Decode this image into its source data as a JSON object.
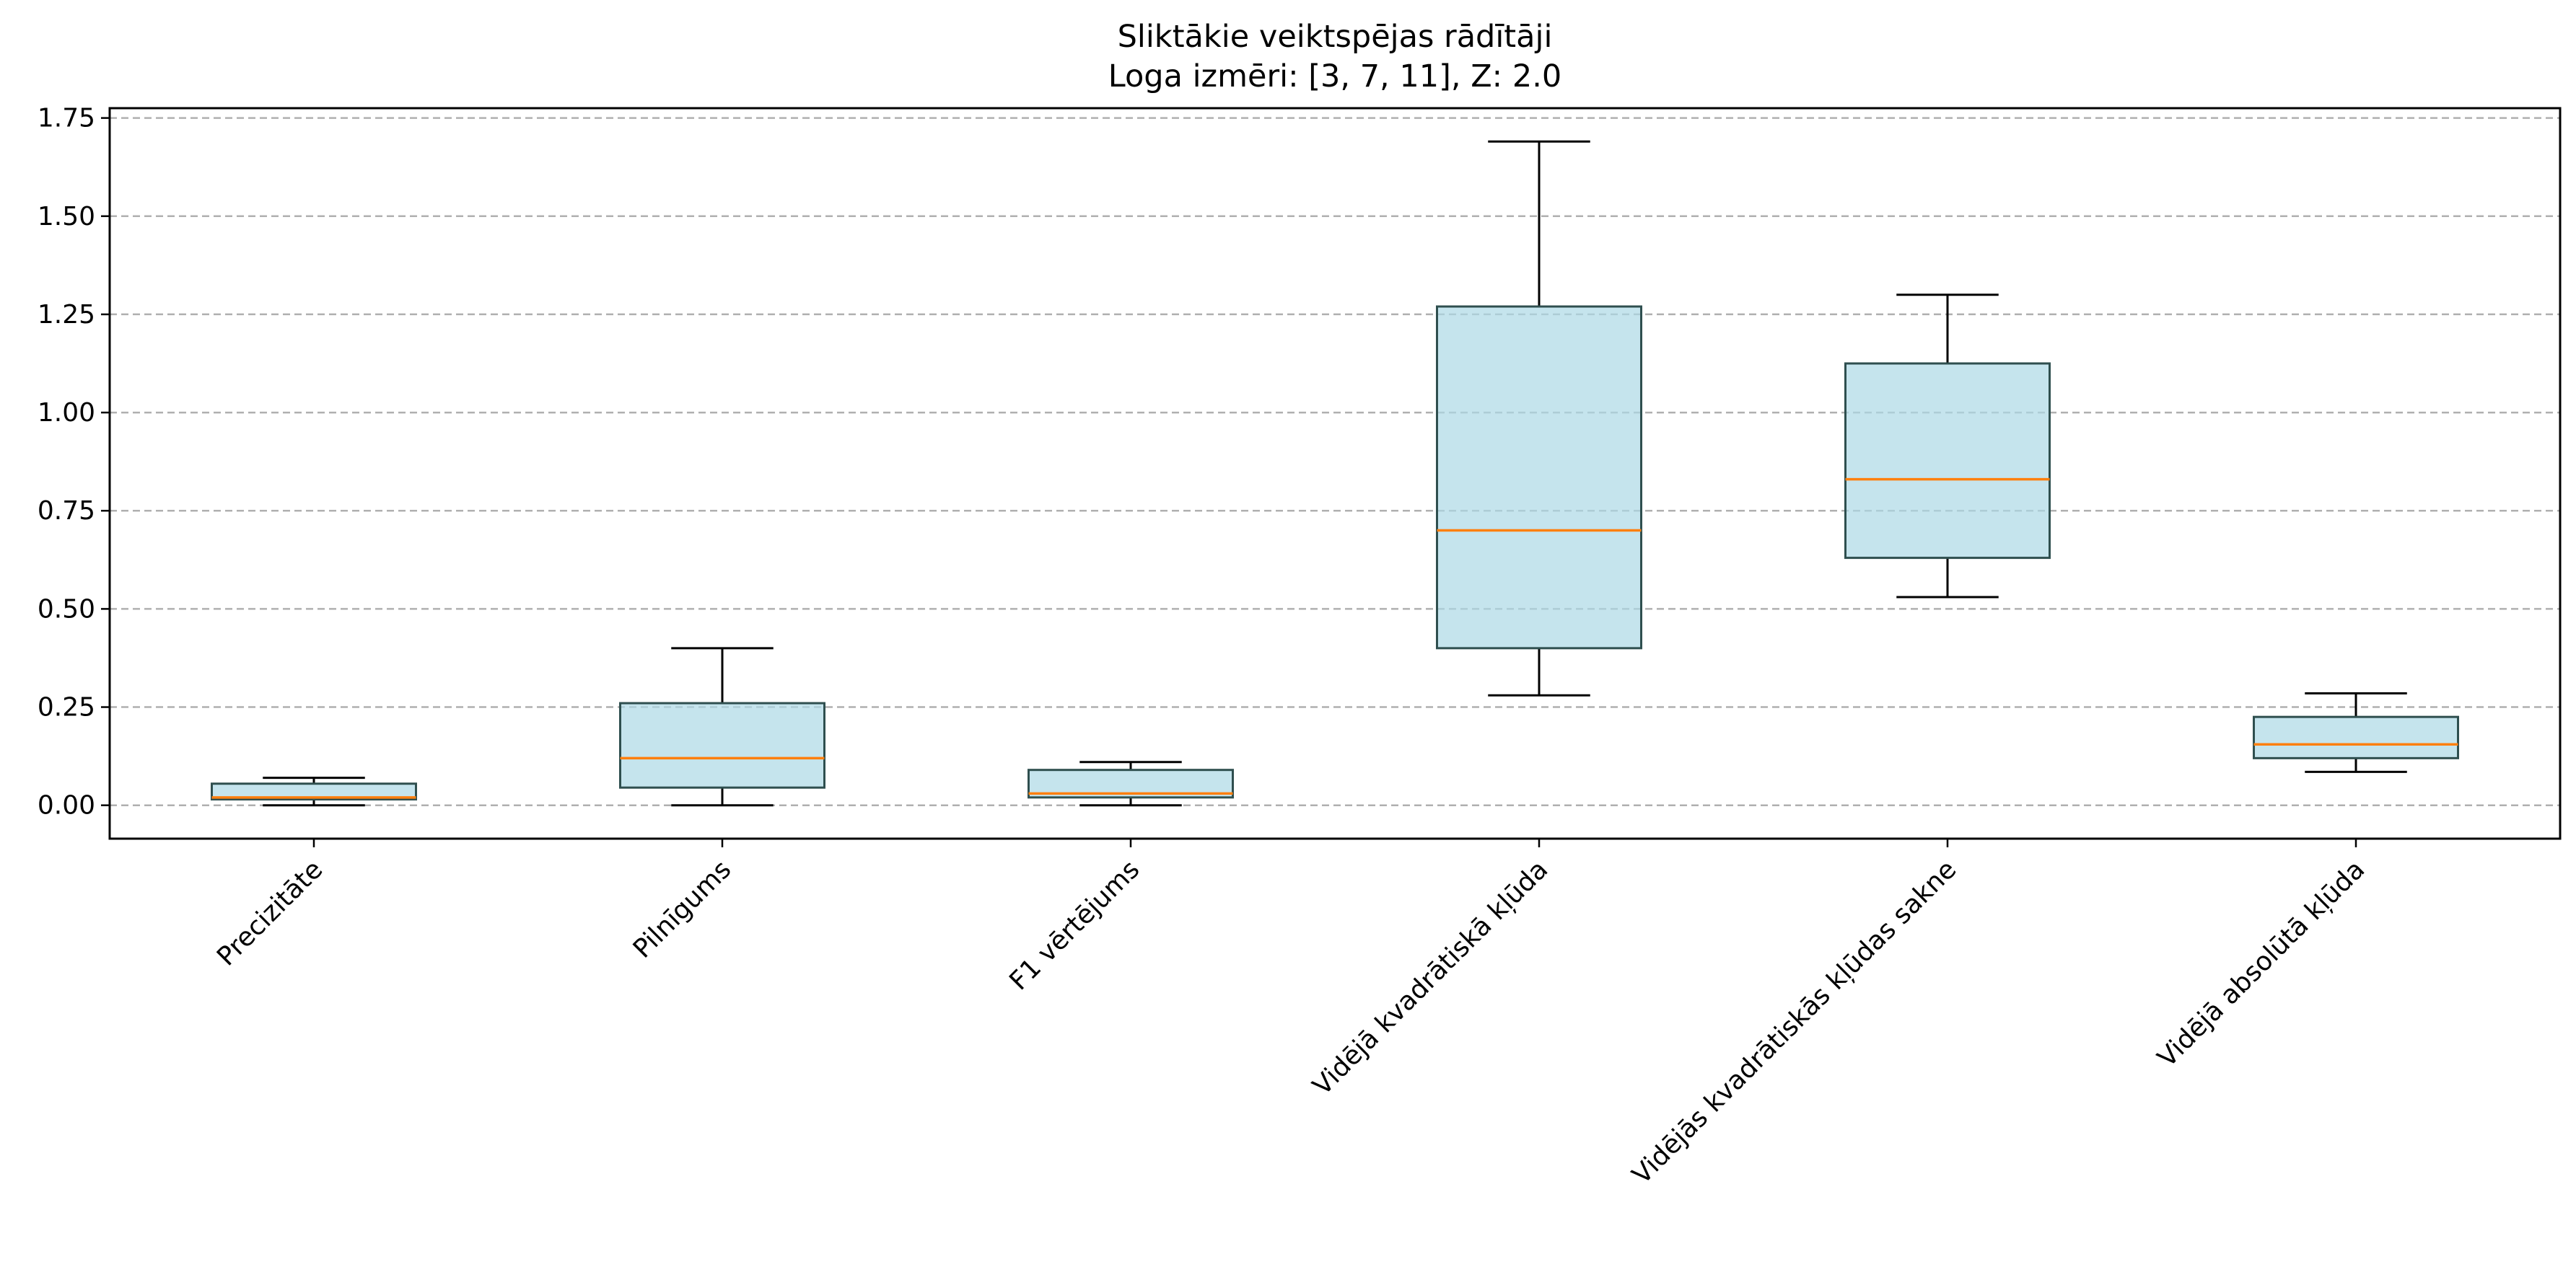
{
  "chart_data": {
    "type": "boxplot",
    "title": "Sliktākie veiktspējas rādītāji",
    "subtitle": "Loga izmēri: [3, 7, 11], Z: 2.0",
    "xlabel": "",
    "ylabel": "",
    "ylim": [
      -0.085,
      1.775
    ],
    "yticks": [
      0.0,
      0.25,
      0.5,
      0.75,
      1.0,
      1.25,
      1.5,
      1.75
    ],
    "ytick_labels": [
      "0.00",
      "0.25",
      "0.50",
      "0.75",
      "1.00",
      "1.25",
      "1.50",
      "1.75"
    ],
    "grid": "y, dashed",
    "colors": {
      "box_fill": "#add8e6",
      "box_edge": "#2f4f4f",
      "median": "#ff7f0e",
      "whisker": "#000000",
      "grid": "#b0b0b0"
    },
    "categories": [
      "Precizitāte",
      "Pilnīgums",
      "F1 vērtējums",
      "Vidējā kvadrātiskā kļūda",
      "Vidējās kvadrātiskās kļūdas sakne",
      "Vidējā absolūtā kļūda"
    ],
    "boxes": [
      {
        "whisker_low": 0.0,
        "q1": 0.015,
        "median": 0.02,
        "q3": 0.055,
        "whisker_high": 0.07
      },
      {
        "whisker_low": 0.0,
        "q1": 0.045,
        "median": 0.12,
        "q3": 0.26,
        "whisker_high": 0.4
      },
      {
        "whisker_low": 0.0,
        "q1": 0.02,
        "median": 0.03,
        "q3": 0.09,
        "whisker_high": 0.11
      },
      {
        "whisker_low": 0.28,
        "q1": 0.4,
        "median": 0.7,
        "q3": 1.27,
        "whisker_high": 1.69
      },
      {
        "whisker_low": 0.53,
        "q1": 0.63,
        "median": 0.83,
        "q3": 1.125,
        "whisker_high": 1.3
      },
      {
        "whisker_low": 0.085,
        "q1": 0.12,
        "median": 0.155,
        "q3": 0.225,
        "whisker_high": 0.285
      }
    ]
  }
}
